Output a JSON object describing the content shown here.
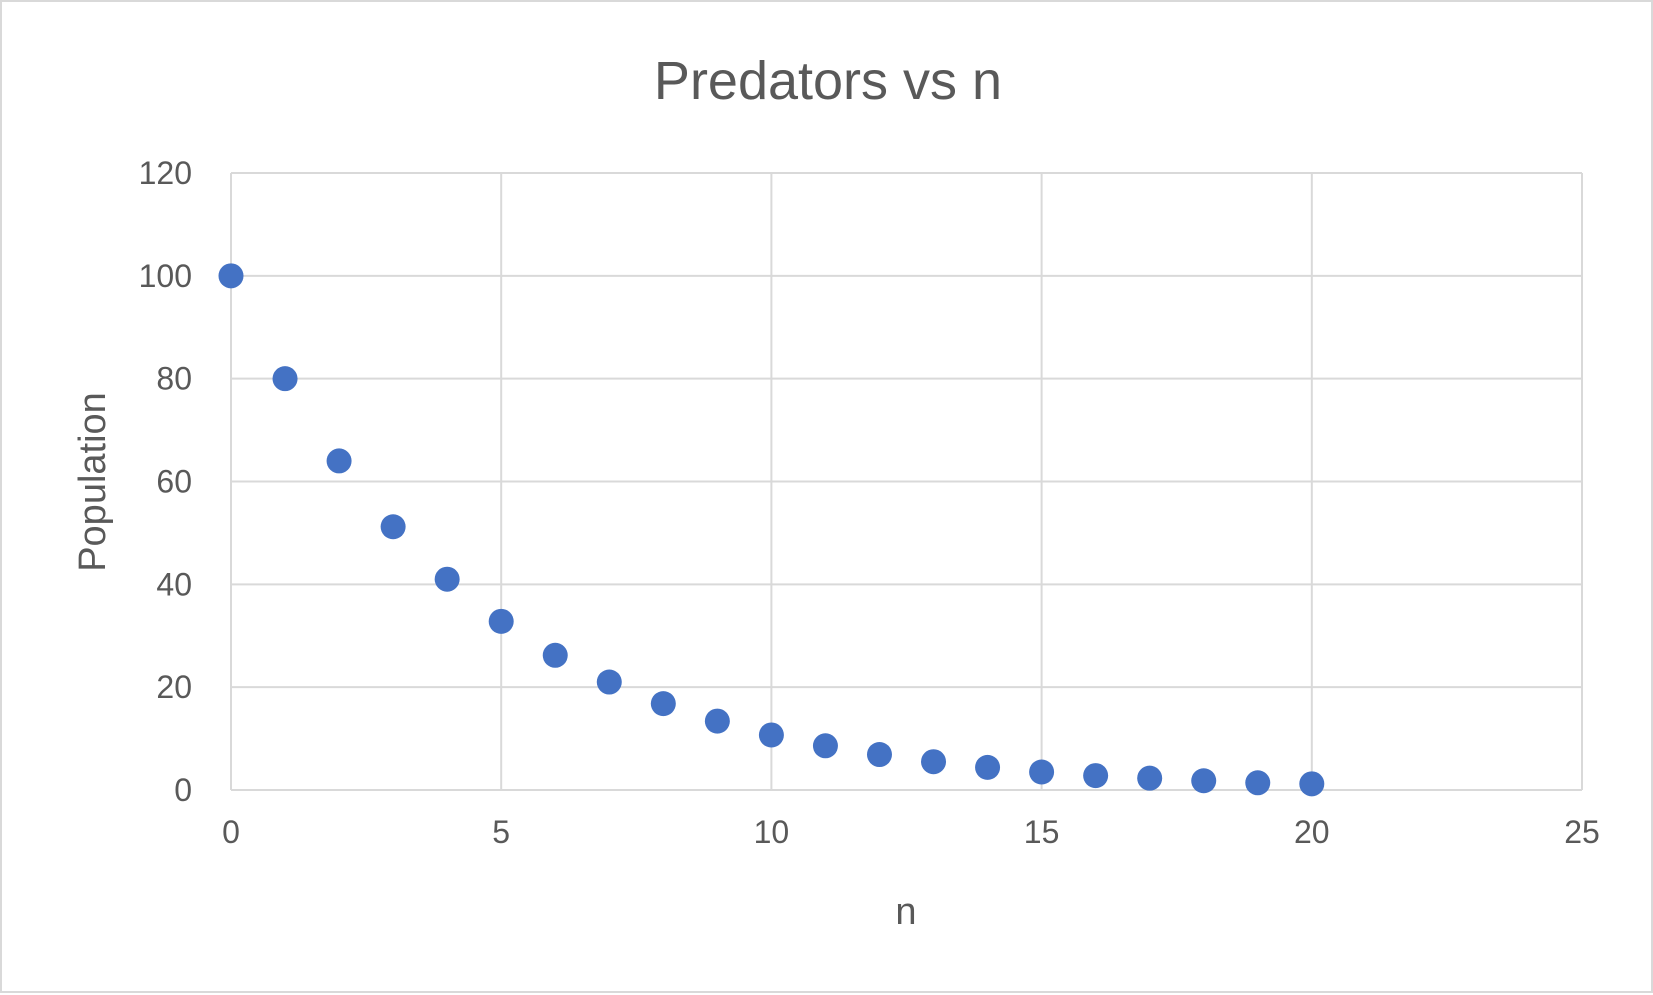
{
  "chart_data": {
    "type": "scatter",
    "title": "Predators vs n",
    "xlabel": "n",
    "ylabel": "Population",
    "xlim": [
      0,
      25
    ],
    "ylim": [
      0,
      120
    ],
    "x_ticks": [
      "0",
      "5",
      "10",
      "15",
      "20",
      "25"
    ],
    "y_ticks": [
      "0",
      "20",
      "40",
      "60",
      "80",
      "100",
      "120"
    ],
    "grid": true,
    "legend": "none",
    "series": [
      {
        "color": "#4472c4",
        "x": [
          0,
          1,
          2,
          3,
          4,
          5,
          6,
          7,
          8,
          9,
          10,
          11,
          12,
          13,
          14,
          15,
          16,
          17,
          18,
          19,
          20
        ],
        "y": [
          100,
          80,
          64,
          51.2,
          41,
          32.8,
          26.2,
          21,
          16.8,
          13.4,
          10.7,
          8.6,
          6.9,
          5.5,
          4.4,
          3.5,
          2.8,
          2.3,
          1.8,
          1.4,
          1.2
        ]
      }
    ]
  }
}
